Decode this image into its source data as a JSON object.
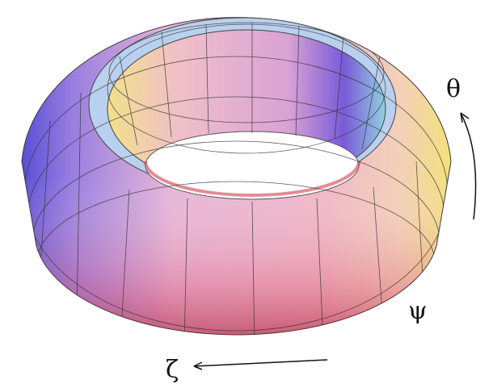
{
  "labels": {
    "theta": "θ",
    "psi": "ψ",
    "zeta": "ζ"
  }
}
